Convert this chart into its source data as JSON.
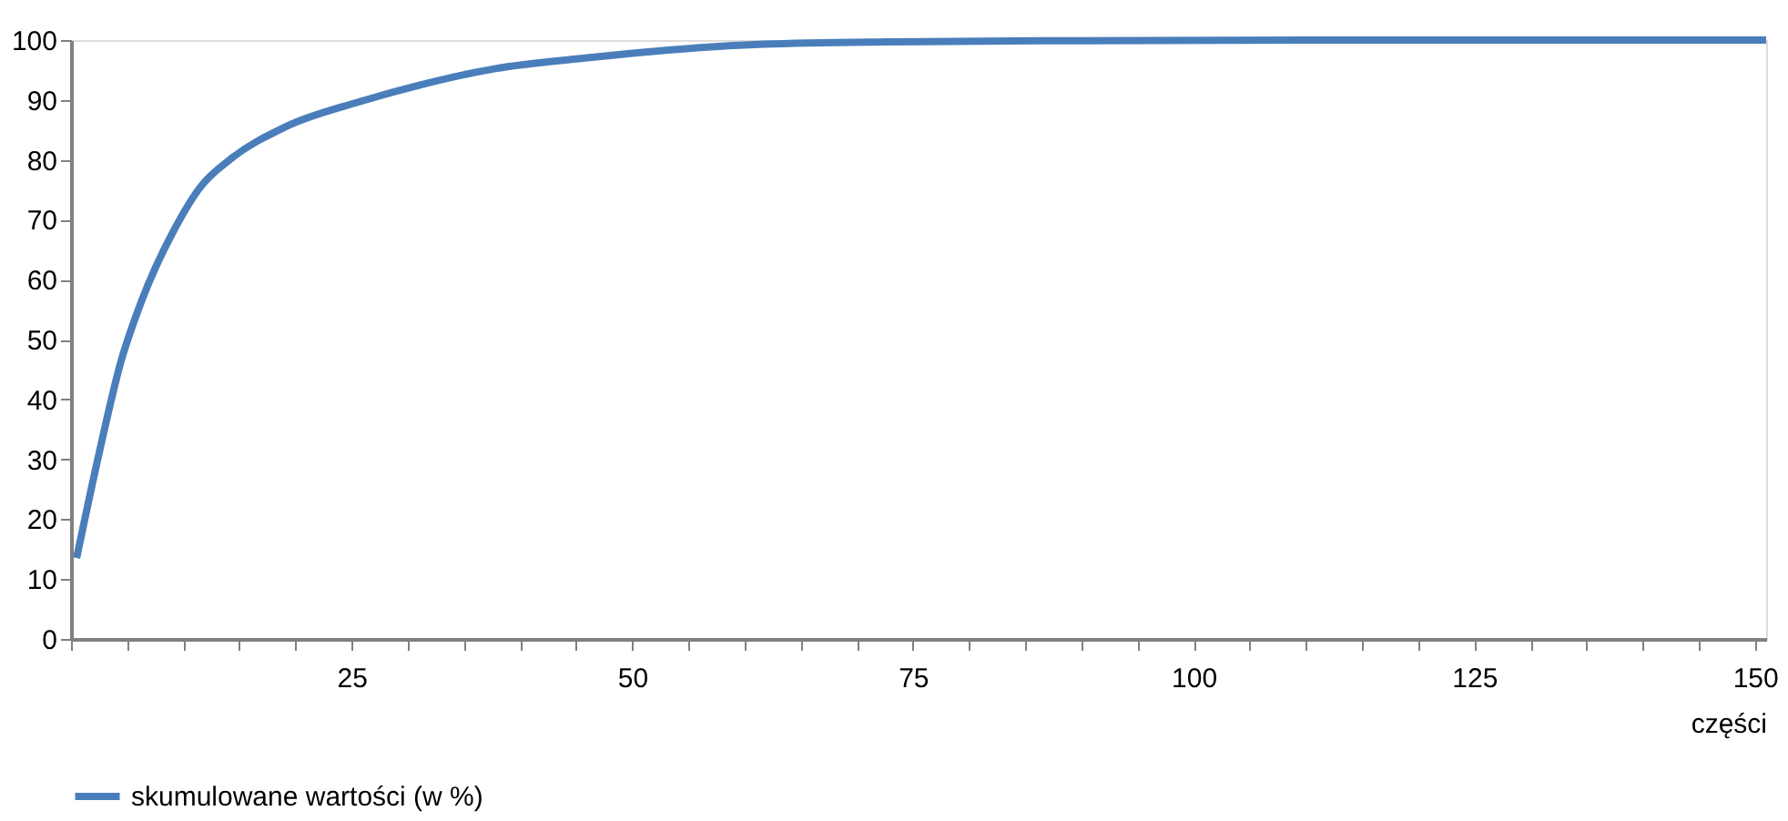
{
  "chart_data": {
    "type": "line",
    "xlabel": "części",
    "x": [
      0.5,
      2.5,
      4.4,
      6.3,
      9.3,
      11.5,
      14.2,
      19.1,
      25.7,
      31.1,
      37.7,
      46.4,
      50,
      61.7,
      72.7,
      90,
      110,
      130,
      151
    ],
    "series": [
      {
        "name": "skumulowane wartości (w %)",
        "color": "#4a7ebb",
        "values": [
          13.5,
          31,
          46,
          56.5,
          68.7,
          75.4,
          80.1,
          85.5,
          89.7,
          92.5,
          95.2,
          97.1,
          97.8,
          99.3,
          99.7,
          99.9,
          100,
          100,
          100
        ]
      }
    ],
    "xlim": [
      0,
      151
    ],
    "xticks": [
      {
        "value": 0,
        "label": null
      },
      {
        "value": 5,
        "label": null
      },
      {
        "value": 10,
        "label": null
      },
      {
        "value": 15,
        "label": null
      },
      {
        "value": 20,
        "label": null
      },
      25,
      {
        "value": 30,
        "label": null
      },
      {
        "value": 35,
        "label": null
      },
      {
        "value": 40,
        "label": null
      },
      {
        "value": 45,
        "label": null
      },
      50,
      {
        "value": 55,
        "label": null
      },
      {
        "value": 60,
        "label": null
      },
      {
        "value": 65,
        "label": null
      },
      {
        "value": 70,
        "label": null
      },
      75,
      {
        "value": 80,
        "label": null
      },
      {
        "value": 85,
        "label": null
      },
      {
        "value": 90,
        "label": null
      },
      {
        "value": 95,
        "label": null
      },
      100,
      {
        "value": 105,
        "label": null
      },
      {
        "value": 110,
        "label": null
      },
      {
        "value": 115,
        "label": null
      },
      {
        "value": 120,
        "label": null
      },
      125,
      {
        "value": 130,
        "label": null
      },
      {
        "value": 135,
        "label": null
      },
      {
        "value": 140,
        "label": null
      },
      {
        "value": 145,
        "label": null
      },
      150
    ],
    "ylim": [
      0,
      100
    ],
    "yticks": [
      0,
      10,
      20,
      30,
      40,
      50,
      60,
      70,
      80,
      90,
      100
    ],
    "grid": false,
    "legend": "bottom",
    "marker": "none",
    "line_style": "solid"
  }
}
